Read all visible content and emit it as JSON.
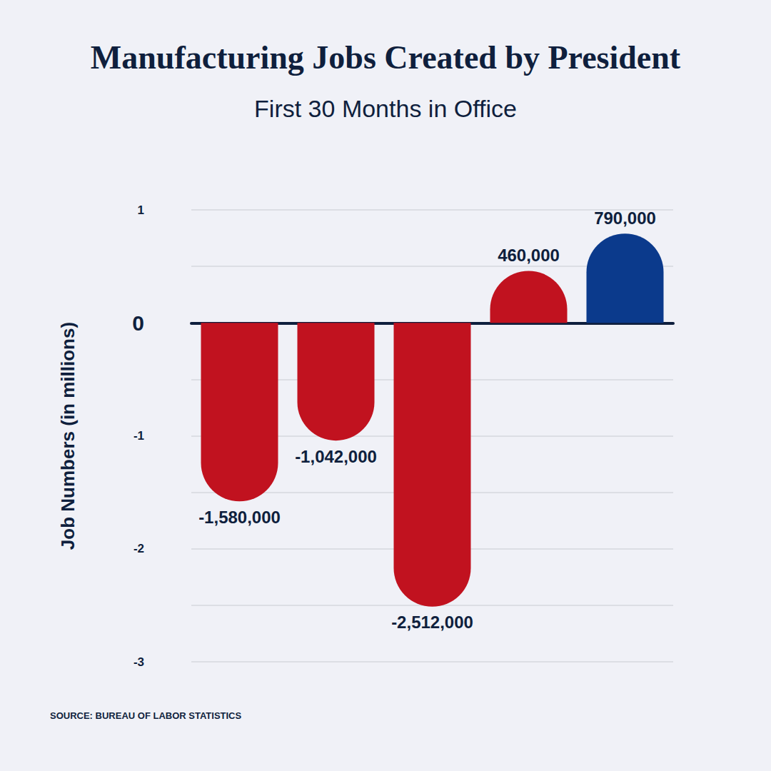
{
  "chart_data": {
    "type": "bar",
    "title": "Manufacturing Jobs Created by President",
    "subtitle": "First 30 Months in Office",
    "y_label": "Job Numbers (in millions)",
    "source": "SOURCE: BUREAU OF LABOR STATISTICS",
    "categories": [
      null,
      null,
      null,
      null,
      null
    ],
    "values": [
      -1.58,
      -1.042,
      -2.512,
      0.46,
      0.79
    ],
    "value_labels": [
      "-1,580,000",
      "-1,042,000",
      "-2,512,000",
      "460,000",
      "790,000"
    ],
    "colors": [
      "#c1121f",
      "#c1121f",
      "#c1121f",
      "#c1121f",
      "#0b3a8c"
    ],
    "ylim": [
      -3,
      1
    ],
    "yticks": [
      -3,
      -2,
      -1,
      0,
      1
    ],
    "grid": true,
    "data_labels": true
  }
}
